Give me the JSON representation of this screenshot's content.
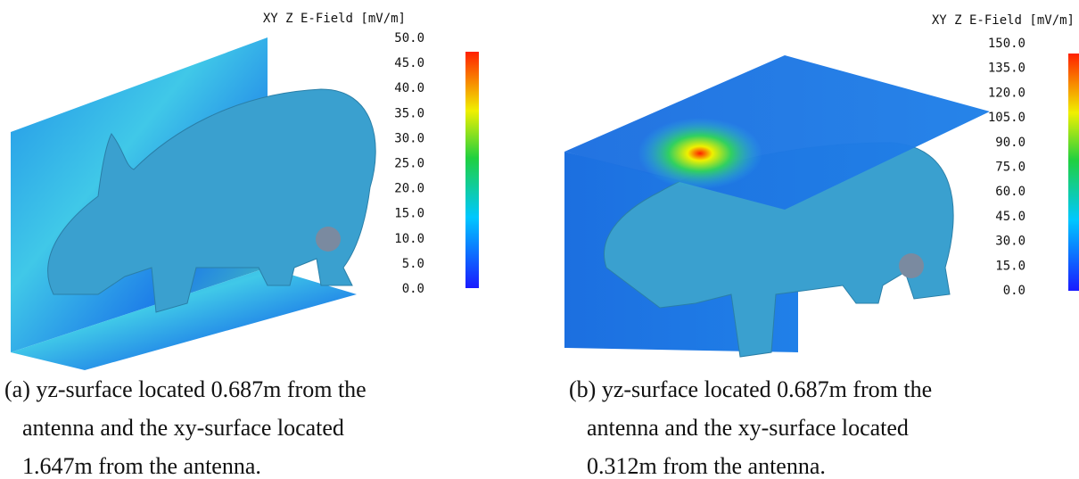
{
  "panels": [
    {
      "colorbar": {
        "title": "XY Z E-Field [mV/m]",
        "ticks": [
          "50.0",
          "45.0",
          "40.0",
          "35.0",
          "30.0",
          "25.0",
          "20.0",
          "15.0",
          "10.0",
          "5.0",
          "0.0"
        ]
      },
      "caption": [
        "(a) yz-surface located 0.687m from the",
        "antenna and the xy-surface located",
        "1.647m from the antenna."
      ]
    },
    {
      "colorbar": {
        "title": "XY Z E-Field [mV/m]",
        "ticks": [
          "150.0",
          "135.0",
          "120.0",
          "105.0",
          "90.0",
          "75.0",
          "60.0",
          "45.0",
          "30.0",
          "15.0",
          "0.0"
        ]
      },
      "caption": [
        "(b) yz-surface located 0.687m from the",
        "antenna and the xy-surface located",
        "0.312m from the antenna."
      ]
    }
  ]
}
